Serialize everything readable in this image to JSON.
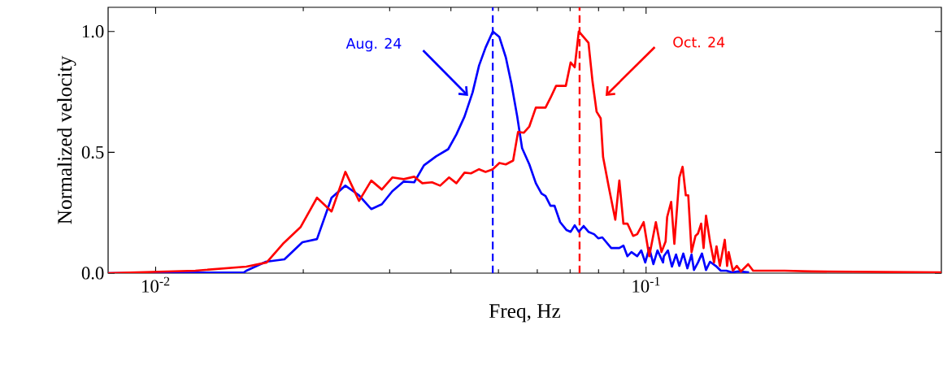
{
  "chart_data": {
    "type": "line",
    "xlabel": "Freq, Hz",
    "ylabel": "Normalized velocity",
    "log": "x",
    "xlim": [
      0.008,
      0.4
    ],
    "ylim": [
      0,
      1.1
    ],
    "xticks": [
      {
        "value": 0.01,
        "label": "10$^{-2}$"
      },
      {
        "value": 0.1,
        "label": "10$^{-1}$"
      }
    ],
    "yticks": [
      {
        "value": 0,
        "label": "0.0"
      },
      {
        "value": 0.5,
        "label": "0.5"
      },
      {
        "value": 1,
        "label": "1.0"
      }
    ],
    "series": [
      {
        "color": "#0000ff",
        "x": [
          0.008,
          0.01514,
          0.01531,
          0.01678,
          0.01831,
          0.01992,
          0.02133,
          0.02284,
          0.02437,
          0.02599,
          0.02752,
          0.02892,
          0.03038,
          0.03205,
          0.03367,
          0.03525,
          0.03731,
          0.0395,
          0.04104,
          0.04264,
          0.04429,
          0.04565,
          0.04706,
          0.0487,
          0.05022,
          0.05176,
          0.05316,
          0.05461,
          0.05587,
          0.05781,
          0.0596,
          0.06121,
          0.06237,
          0.06383,
          0.06505,
          0.0668,
          0.06887,
          0.07019,
          0.07154,
          0.07292,
          0.0746,
          0.07632,
          0.07838,
          0.07989,
          0.08142,
          0.0849,
          0.0882,
          0.0899,
          0.09162,
          0.09337,
          0.0959,
          0.09775,
          0.09961,
          0.1015,
          0.1035,
          0.1055,
          0.1083,
          0.1087,
          0.1108,
          0.1129,
          0.1151,
          0.1169,
          0.1191,
          0.1214,
          0.1238,
          0.1252,
          0.1276,
          0.13,
          0.1325,
          0.135,
          0.1387,
          0.142,
          0.1458,
          0.1497,
          0.1543,
          0.1622
        ],
        "values": [
          0,
          0.003,
          0.01,
          0.047,
          0.057,
          0.128,
          0.141,
          0.312,
          0.362,
          0.322,
          0.265,
          0.285,
          0.339,
          0.379,
          0.376,
          0.446,
          0.483,
          0.513,
          0.574,
          0.648,
          0.748,
          0.859,
          0.933,
          1.0,
          0.977,
          0.893,
          0.782,
          0.648,
          0.517,
          0.45,
          0.372,
          0.329,
          0.319,
          0.279,
          0.279,
          0.211,
          0.178,
          0.171,
          0.198,
          0.171,
          0.195,
          0.171,
          0.161,
          0.144,
          0.148,
          0.104,
          0.104,
          0.114,
          0.07,
          0.087,
          0.07,
          0.094,
          0.044,
          0.104,
          0.037,
          0.094,
          0.044,
          0.07,
          0.094,
          0.027,
          0.077,
          0.03,
          0.081,
          0.02,
          0.077,
          0.013,
          0.044,
          0.081,
          0.013,
          0.047,
          0.03,
          0.01,
          0.01,
          0.003,
          0.007,
          0.003
        ]
      },
      {
        "color": "#ff0000",
        "x": [
          0.008,
          0.01205,
          0.01531,
          0.01684,
          0.01817,
          0.01976,
          0.02133,
          0.02284,
          0.02437,
          0.02599,
          0.02752,
          0.02892,
          0.03038,
          0.03205,
          0.03367,
          0.03498,
          0.03661,
          0.03803,
          0.03966,
          0.04104,
          0.04264,
          0.04395,
          0.04565,
          0.04706,
          0.0487,
          0.05022,
          0.05176,
          0.05357,
          0.05482,
          0.0563,
          0.05781,
          0.0596,
          0.06237,
          0.06383,
          0.06554,
          0.06861,
          0.07019,
          0.07154,
          0.07292,
          0.07632,
          0.07779,
          0.07929,
          0.0808,
          0.08173,
          0.08395,
          0.08654,
          0.0882,
          0.0899,
          0.09162,
          0.0941,
          0.0959,
          0.09886,
          0.1015,
          0.1047,
          0.1075,
          0.1096,
          0.1104,
          0.1125,
          0.1142,
          0.1169,
          0.1187,
          0.1205,
          0.1219,
          0.1238,
          0.1261,
          0.1276,
          0.1295,
          0.131,
          0.1325,
          0.135,
          0.1376,
          0.1392,
          0.1414,
          0.1447,
          0.1463,
          0.1474,
          0.1503,
          0.1531,
          0.1561,
          0.1615,
          0.1653,
          0.175,
          0.1917,
          0.2174,
          0.4
        ],
        "values": [
          0,
          0.01,
          0.027,
          0.044,
          0.121,
          0.191,
          0.312,
          0.255,
          0.419,
          0.299,
          0.383,
          0.346,
          0.396,
          0.389,
          0.399,
          0.372,
          0.376,
          0.362,
          0.396,
          0.372,
          0.416,
          0.413,
          0.43,
          0.419,
          0.43,
          0.456,
          0.45,
          0.466,
          0.584,
          0.581,
          0.607,
          0.685,
          0.685,
          0.725,
          0.775,
          0.775,
          0.872,
          0.852,
          1.0,
          0.953,
          0.792,
          0.668,
          0.641,
          0.48,
          0.356,
          0.221,
          0.383,
          0.205,
          0.205,
          0.154,
          0.161,
          0.211,
          0.07,
          0.211,
          0.087,
          0.131,
          0.232,
          0.295,
          0.121,
          0.396,
          0.44,
          0.322,
          0.322,
          0.087,
          0.154,
          0.164,
          0.205,
          0.104,
          0.238,
          0.131,
          0.044,
          0.111,
          0.03,
          0.138,
          0.03,
          0.087,
          0.01,
          0.03,
          0.007,
          0.037,
          0.01,
          0.01,
          0.01,
          0.007,
          0.003
        ]
      }
    ],
    "ref_lines": [
      {
        "axis": "x",
        "value": 0.0487,
        "color": "#0000ff",
        "line_style": "dashed"
      },
      {
        "axis": "x",
        "value": 0.0732,
        "color": "#ff0000",
        "line_style": "dashed"
      }
    ],
    "annotations": [
      "Aug. 24",
      "Oct. 24"
    ]
  }
}
